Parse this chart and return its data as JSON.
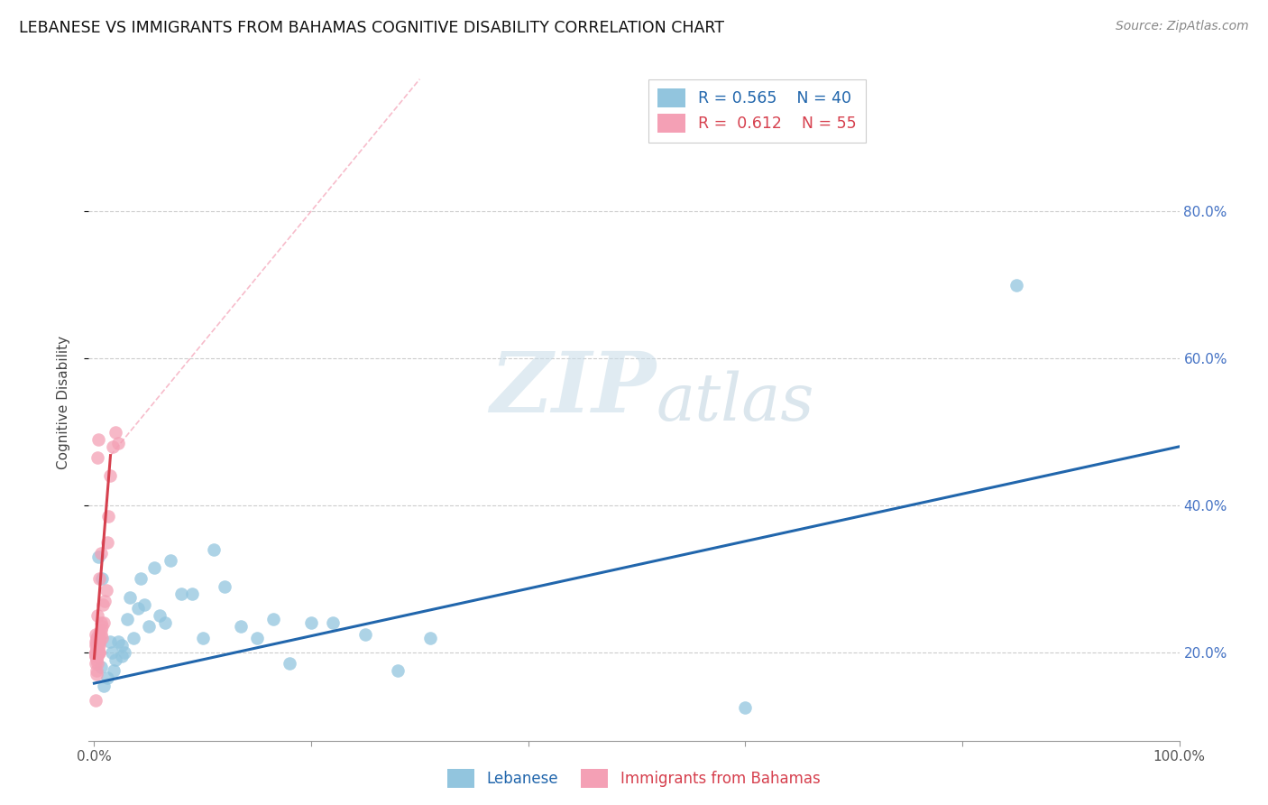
{
  "title": "LEBANESE VS IMMIGRANTS FROM BAHAMAS COGNITIVE DISABILITY CORRELATION CHART",
  "source": "Source: ZipAtlas.com",
  "ylabel": "Cognitive Disability",
  "legend_r1": "R = 0.565",
  "legend_n1": "N = 40",
  "legend_r2": "R = 0.612",
  "legend_n2": "N = 55",
  "blue_color": "#92c5de",
  "pink_color": "#f4a0b5",
  "blue_line_color": "#2166ac",
  "pink_line_color": "#d6404e",
  "pink_dash_color": "#f4a0b5",
  "watermark_zip": "ZIP",
  "watermark_atlas": "atlas",
  "ytick_color": "#4472c4",
  "label_color": "#4472c4",
  "blue_scatter_x": [
    0.006,
    0.009,
    0.012,
    0.016,
    0.018,
    0.02,
    0.022,
    0.025,
    0.028,
    0.03,
    0.033,
    0.036,
    0.04,
    0.043,
    0.046,
    0.05,
    0.055,
    0.06,
    0.065,
    0.07,
    0.08,
    0.09,
    0.1,
    0.11,
    0.12,
    0.135,
    0.15,
    0.165,
    0.18,
    0.2,
    0.22,
    0.25,
    0.28,
    0.31,
    0.6,
    0.85,
    0.004,
    0.007,
    0.015,
    0.025
  ],
  "blue_scatter_y": [
    0.18,
    0.155,
    0.165,
    0.2,
    0.175,
    0.19,
    0.215,
    0.21,
    0.2,
    0.245,
    0.275,
    0.22,
    0.26,
    0.3,
    0.265,
    0.235,
    0.315,
    0.25,
    0.24,
    0.325,
    0.28,
    0.28,
    0.22,
    0.34,
    0.29,
    0.235,
    0.22,
    0.245,
    0.185,
    0.24,
    0.24,
    0.225,
    0.175,
    0.22,
    0.125,
    0.7,
    0.33,
    0.3,
    0.215,
    0.195
  ],
  "pink_scatter_x": [
    0.001,
    0.001,
    0.001,
    0.001,
    0.001,
    0.0015,
    0.0015,
    0.002,
    0.002,
    0.002,
    0.002,
    0.002,
    0.0025,
    0.003,
    0.003,
    0.003,
    0.003,
    0.004,
    0.004,
    0.004,
    0.004,
    0.005,
    0.005,
    0.005,
    0.006,
    0.006,
    0.007,
    0.008,
    0.009,
    0.01,
    0.011,
    0.012,
    0.013,
    0.015,
    0.017,
    0.02,
    0.022,
    0.001,
    0.001,
    0.002,
    0.002,
    0.003,
    0.003,
    0.004,
    0.005,
    0.005,
    0.006,
    0.007,
    0.003,
    0.004,
    0.005,
    0.006,
    0.001,
    0.002,
    0.003
  ],
  "pink_scatter_y": [
    0.2,
    0.21,
    0.195,
    0.215,
    0.185,
    0.2,
    0.225,
    0.205,
    0.2,
    0.215,
    0.195,
    0.22,
    0.21,
    0.2,
    0.215,
    0.195,
    0.22,
    0.2,
    0.225,
    0.21,
    0.215,
    0.21,
    0.22,
    0.2,
    0.225,
    0.24,
    0.235,
    0.265,
    0.24,
    0.27,
    0.285,
    0.35,
    0.385,
    0.44,
    0.48,
    0.5,
    0.485,
    0.195,
    0.2,
    0.19,
    0.175,
    0.185,
    0.2,
    0.22,
    0.2,
    0.215,
    0.23,
    0.22,
    0.465,
    0.49,
    0.3,
    0.335,
    0.135,
    0.17,
    0.25
  ],
  "blue_line": {
    "x0": 0.0,
    "y0": 0.158,
    "x1": 1.0,
    "y1": 0.48
  },
  "pink_solid_line": {
    "x0": 0.0,
    "y0": 0.192,
    "x1": 0.015,
    "y1": 0.468
  },
  "pink_dash_line": {
    "x0": 0.015,
    "y0": 0.468,
    "x1": 0.3,
    "y1": 0.98
  },
  "xlim": [
    -0.005,
    1.0
  ],
  "ylim": [
    0.08,
    1.0
  ],
  "xticks": [
    0.0,
    0.2,
    0.4,
    0.6,
    0.8,
    1.0
  ],
  "xticklabels": [
    "0.0%",
    "",
    "",
    "",
    "",
    "100.0%"
  ],
  "yticks": [
    0.2,
    0.4,
    0.6,
    0.8
  ],
  "yticklabels": [
    "20.0%",
    "40.0%",
    "60.0%",
    "80.0%"
  ]
}
